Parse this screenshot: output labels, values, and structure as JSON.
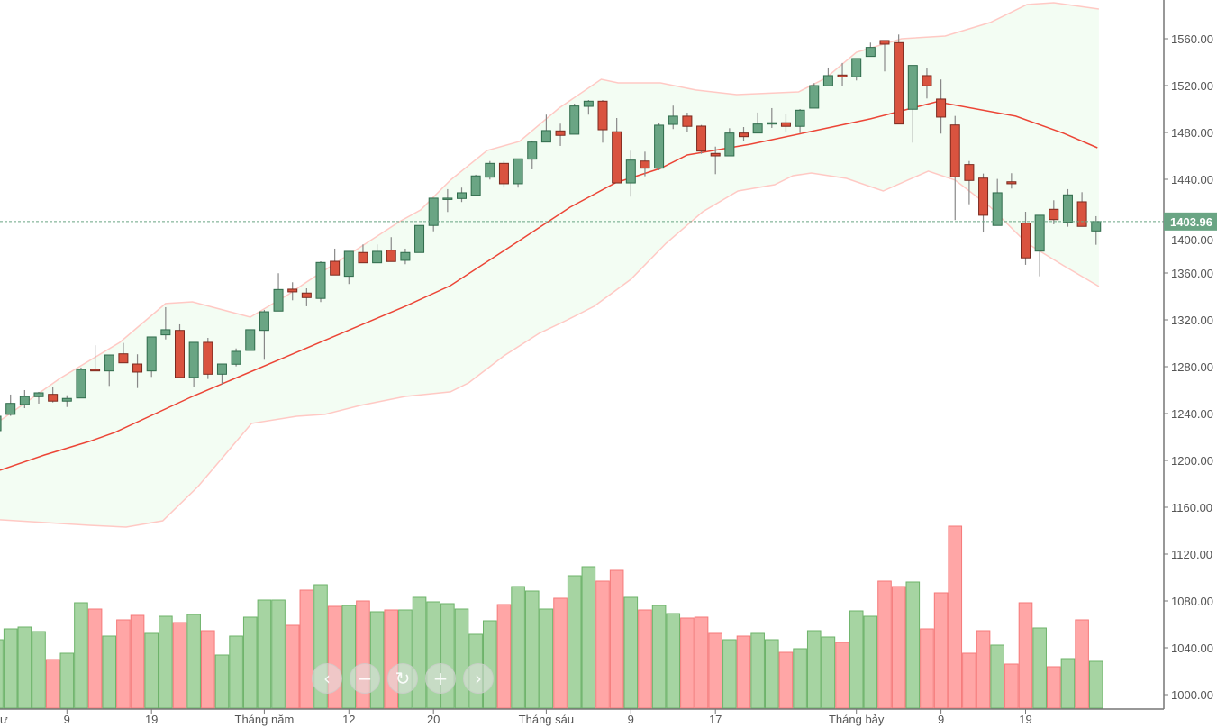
{
  "chart_data": {
    "type": "candlestick",
    "title": "",
    "price_axis": {
      "ticks": [
        "1000.00",
        "1040.00",
        "1080.00",
        "1120.00",
        "1160.00",
        "1200.00",
        "1240.00",
        "1280.00",
        "1320.00",
        "1360.00",
        "1400.00",
        "1440.00",
        "1480.00",
        "1520.00",
        "1560.00"
      ],
      "ylim": [
        985,
        1590
      ]
    },
    "last_price": "1403.96",
    "x_labels": [
      {
        "index": -1,
        "label": "ư"
      },
      {
        "index": 4,
        "label": "9"
      },
      {
        "index": 10,
        "label": "19"
      },
      {
        "index": 18,
        "label": "Tháng năm"
      },
      {
        "index": 24,
        "label": "12"
      },
      {
        "index": 30,
        "label": "20"
      },
      {
        "index": 38,
        "label": "Tháng sáu"
      },
      {
        "index": 44,
        "label": "9"
      },
      {
        "index": 50,
        "label": "17"
      },
      {
        "index": 60,
        "label": "Tháng bảy"
      },
      {
        "index": 66,
        "label": "9"
      },
      {
        "index": 72,
        "label": "19"
      }
    ],
    "candles_ohlc_from_index_-1": [
      [
        1225.4,
        1240.8,
        1222.3,
        1237.7
      ],
      [
        1239.3,
        1256.2,
        1238.0,
        1248.7
      ],
      [
        1247.7,
        1260.0,
        1244.6,
        1254.6
      ],
      [
        1254.4,
        1258.5,
        1248.5,
        1257.7
      ],
      [
        1256.4,
        1262.6,
        1249.5,
        1250.6
      ],
      [
        1250.6,
        1255.6,
        1245.6,
        1252.9
      ],
      [
        1253.3,
        1279.3,
        1253.3,
        1277.7
      ],
      [
        1277.7,
        1298.3,
        1276.4,
        1276.4
      ],
      [
        1276.4,
        1290.0,
        1263.6,
        1290.0
      ],
      [
        1291.0,
        1300.3,
        1283.3,
        1283.3
      ],
      [
        1282.3,
        1290.6,
        1261.8,
        1275.4
      ],
      [
        1276.4,
        1305.4,
        1271.3,
        1305.4
      ],
      [
        1307.2,
        1330.8,
        1303.3,
        1311.6
      ],
      [
        1311.0,
        1316.2,
        1270.8,
        1270.8
      ],
      [
        1270.8,
        1300.8,
        1262.9,
        1300.8
      ],
      [
        1300.8,
        1304.6,
        1269.5,
        1273.6
      ],
      [
        1273.6,
        1282.3,
        1264.9,
        1282.3
      ],
      [
        1282.1,
        1295.6,
        1280.3,
        1293.1
      ],
      [
        1293.9,
        1311.6,
        1293.9,
        1311.6
      ],
      [
        1311.0,
        1328.5,
        1285.9,
        1326.9
      ],
      [
        1327.5,
        1359.8,
        1327.5,
        1345.9
      ],
      [
        1346.2,
        1352.1,
        1336.7,
        1343.9
      ],
      [
        1342.9,
        1346.9,
        1331.6,
        1339.0
      ],
      [
        1338.3,
        1370.0,
        1335.2,
        1369.0
      ],
      [
        1370.0,
        1380.8,
        1358.3,
        1358.3
      ],
      [
        1357.2,
        1378.5,
        1350.6,
        1378.5
      ],
      [
        1377.5,
        1384.4,
        1368.7,
        1368.7
      ],
      [
        1368.7,
        1384.4,
        1368.7,
        1378.5
      ],
      [
        1379.5,
        1390.6,
        1369.8,
        1369.8
      ],
      [
        1370.8,
        1380.8,
        1367.5,
        1377.5
      ],
      [
        1377.5,
        1400.6,
        1377.5,
        1400.6
      ],
      [
        1400.6,
        1423.9,
        1395.6,
        1423.9
      ],
      [
        1423.1,
        1431.6,
        1412.1,
        1423.9
      ],
      [
        1423.6,
        1432.9,
        1420.6,
        1428.5
      ],
      [
        1426.4,
        1443.9,
        1426.4,
        1442.9
      ],
      [
        1441.8,
        1455.6,
        1439.8,
        1453.6
      ],
      [
        1453.6,
        1455.6,
        1432.9,
        1436.2
      ],
      [
        1436.2,
        1457.5,
        1432.9,
        1457.5
      ],
      [
        1457.2,
        1473.1,
        1448.5,
        1471.8
      ],
      [
        1471.8,
        1495.2,
        1471.8,
        1481.6
      ],
      [
        1481.3,
        1487.5,
        1468.5,
        1477.5
      ],
      [
        1478.5,
        1504.6,
        1478.5,
        1502.6
      ],
      [
        1502.3,
        1507.7,
        1495.2,
        1506.7
      ],
      [
        1506.7,
        1507.7,
        1471.3,
        1482.3
      ],
      [
        1480.6,
        1492.3,
        1436.9,
        1436.9
      ],
      [
        1436.9,
        1464.4,
        1425.2,
        1456.4
      ],
      [
        1455.6,
        1463.6,
        1442.6,
        1449.5
      ],
      [
        1449.5,
        1487.7,
        1447.7,
        1486.2
      ],
      [
        1486.9,
        1502.9,
        1482.9,
        1493.9
      ],
      [
        1493.9,
        1496.9,
        1480.0,
        1485.2
      ],
      [
        1485.4,
        1486.4,
        1461.8,
        1464.1
      ],
      [
        1462.1,
        1467.9,
        1444.4,
        1460.0
      ],
      [
        1460.0,
        1483.6,
        1460.0,
        1479.5
      ],
      [
        1479.5,
        1484.6,
        1472.6,
        1476.4
      ],
      [
        1479.5,
        1497.0,
        1479.5,
        1487.2
      ],
      [
        1487.2,
        1500.8,
        1483.9,
        1488.3
      ],
      [
        1488.3,
        1495.9,
        1480.8,
        1485.2
      ],
      [
        1485.2,
        1500.0,
        1479.5,
        1499.0
      ],
      [
        1500.8,
        1522.1,
        1500.8,
        1520.0
      ],
      [
        1519.8,
        1535.4,
        1519.8,
        1528.5
      ],
      [
        1529.0,
        1539.3,
        1519.8,
        1527.5
      ],
      [
        1527.5,
        1543.1,
        1524.4,
        1543.1
      ],
      [
        1544.9,
        1556.7,
        1544.9,
        1552.6
      ],
      [
        1558.5,
        1558.5,
        1532.1,
        1555.4
      ],
      [
        1556.7,
        1563.6,
        1487.2,
        1487.2
      ],
      [
        1499.8,
        1537.2,
        1471.3,
        1537.2
      ],
      [
        1528.5,
        1534.6,
        1509.0,
        1519.8
      ],
      [
        1508.5,
        1525.2,
        1479.0,
        1493.1
      ],
      [
        1486.4,
        1494.1,
        1405.2,
        1442.1
      ],
      [
        1452.6,
        1455.6,
        1418.7,
        1439.0
      ],
      [
        1441.0,
        1444.9,
        1394.6,
        1409.3
      ],
      [
        1400.6,
        1440.3,
        1400.6,
        1428.5
      ],
      [
        1437.9,
        1445.2,
        1432.1,
        1436.2
      ],
      [
        1402.6,
        1412.3,
        1367.0,
        1372.9
      ],
      [
        1378.7,
        1409.3,
        1357.2,
        1409.3
      ],
      [
        1414.4,
        1422.1,
        1401.6,
        1405.6
      ],
      [
        1403.3,
        1431.6,
        1399.5,
        1426.7
      ],
      [
        1420.8,
        1429.0,
        1399.8,
        1399.8
      ],
      [
        1395.9,
        1408.5,
        1384.1,
        1403.96
      ]
    ],
    "volume_relative_from_index_-1": [
      76,
      88,
      90,
      85,
      54,
      61,
      117,
      110,
      80,
      98,
      103,
      83,
      102,
      95,
      104,
      86,
      59,
      80,
      101,
      120,
      120,
      92,
      131,
      137,
      113,
      114,
      119,
      107,
      109,
      109,
      123,
      118,
      116,
      110,
      82,
      97,
      115,
      135,
      130,
      110,
      122,
      147,
      157,
      141,
      153,
      123,
      109,
      114,
      105,
      100,
      101,
      83,
      76,
      80,
      83,
      76,
      62,
      66,
      86,
      79,
      73,
      108,
      102,
      141,
      135,
      140,
      88,
      128,
      202,
      61,
      86,
      70,
      49,
      117,
      89,
      46,
      55,
      98,
      52
    ],
    "bollinger": {
      "upper": [
        [
          -0.75,
          1233.9
        ],
        [
          3.5,
          1270.0
        ],
        [
          7.75,
          1300.8
        ],
        [
          11,
          1333.9
        ],
        [
          12.9,
          1335.4
        ],
        [
          17,
          1322.3
        ],
        [
          19.7,
          1341.6
        ],
        [
          21,
          1352.3
        ],
        [
          27.6,
          1403.9
        ],
        [
          29.1,
          1413.9
        ],
        [
          31.2,
          1439.3
        ],
        [
          33.8,
          1464.6
        ],
        [
          36.1,
          1472.3
        ],
        [
          38.9,
          1500.8
        ],
        [
          41.9,
          1525.4
        ],
        [
          43.1,
          1522.3
        ],
        [
          46.1,
          1522.3
        ],
        [
          48.6,
          1516.2
        ],
        [
          51.5,
          1512.3
        ],
        [
          55.9,
          1514.6
        ],
        [
          57.8,
          1526.2
        ],
        [
          60,
          1548.5
        ],
        [
          63.2,
          1560.0
        ],
        [
          66.3,
          1562.3
        ],
        [
          69.5,
          1573.9
        ],
        [
          72.1,
          1589.2
        ],
        [
          74,
          1590.8
        ],
        [
          77.2,
          1585.4
        ]
      ],
      "middle": [
        [
          -0.75,
          1191.6
        ],
        [
          2.4,
          1204.6
        ],
        [
          5.6,
          1216.2
        ],
        [
          7.4,
          1223.9
        ],
        [
          12.9,
          1254.6
        ],
        [
          19.7,
          1289.3
        ],
        [
          28,
          1331.6
        ],
        [
          31.2,
          1349.2
        ],
        [
          36.1,
          1387.7
        ],
        [
          39.7,
          1416.2
        ],
        [
          42.9,
          1436.9
        ],
        [
          46.1,
          1449.3
        ],
        [
          48,
          1460.8
        ],
        [
          52.5,
          1470.0
        ],
        [
          58,
          1483.9
        ],
        [
          61,
          1491.6
        ],
        [
          65.7,
          1506.2
        ],
        [
          71.3,
          1493.9
        ],
        [
          74.7,
          1479.3
        ],
        [
          77.1,
          1466.9
        ]
      ],
      "lower": [
        [
          -0.75,
          1149.3
        ],
        [
          5.6,
          1144.6
        ],
        [
          8.2,
          1143.1
        ],
        [
          10.8,
          1148.5
        ],
        [
          13.3,
          1177.7
        ],
        [
          17.1,
          1231.6
        ],
        [
          20.3,
          1237.7
        ],
        [
          22.3,
          1239.3
        ],
        [
          24.8,
          1246.9
        ],
        [
          28,
          1254.6
        ],
        [
          31.2,
          1258.5
        ],
        [
          32.5,
          1266.2
        ],
        [
          35,
          1289.3
        ],
        [
          37.5,
          1308.5
        ],
        [
          39.5,
          1320.0
        ],
        [
          41.4,
          1331.6
        ],
        [
          44,
          1354.6
        ],
        [
          46.5,
          1385.4
        ],
        [
          49.1,
          1412.3
        ],
        [
          51.6,
          1430.0
        ],
        [
          54.2,
          1435.4
        ],
        [
          55.5,
          1443.1
        ],
        [
          56.8,
          1445.4
        ],
        [
          59.3,
          1440.8
        ],
        [
          61.9,
          1430.0
        ],
        [
          65.1,
          1447.0
        ],
        [
          67,
          1439.3
        ],
        [
          69.5,
          1416.2
        ],
        [
          72.1,
          1385.4
        ],
        [
          74.7,
          1366.2
        ],
        [
          77.2,
          1348.5
        ]
      ]
    },
    "colors": {
      "up": "#6aa584",
      "up_border": "#2f6b4b",
      "down": "#d9533f",
      "down_border": "#7b2a1f",
      "vol_up": "#a6d4a2",
      "vol_up_border": "#6db36a",
      "vol_down": "#ffa6a6",
      "vol_down_border": "#f57a7a",
      "band_fill": "#f3fdf3",
      "band_line": "#ffc9c4",
      "mid_line": "#ec4536",
      "last_price": "#6aa584"
    }
  },
  "controls": {
    "prev": "‹",
    "zoom_out": "−",
    "reset": "↻",
    "zoom_in": "+",
    "next": "›"
  }
}
